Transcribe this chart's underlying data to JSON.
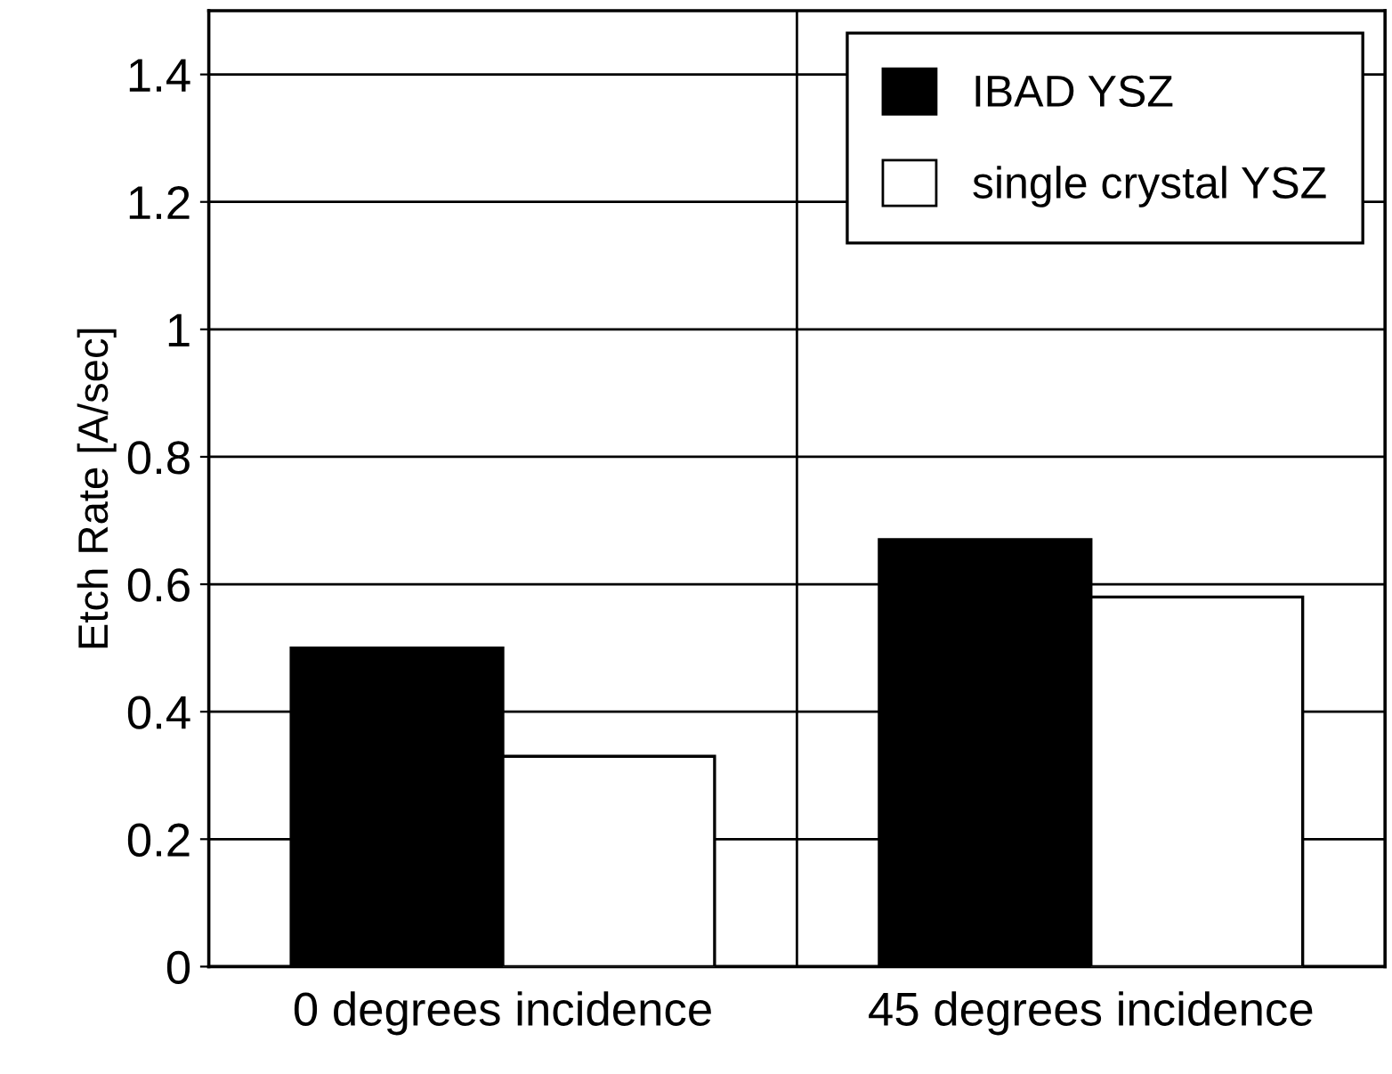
{
  "chart_data": {
    "type": "bar",
    "ylabel": "Etch Rate [A/sec]",
    "categories": [
      "0 degrees incidence",
      "45 degrees incidence"
    ],
    "series": [
      {
        "name": "IBAD YSZ",
        "color": "#000000",
        "values": [
          0.5,
          0.67
        ]
      },
      {
        "name": "single crystal YSZ",
        "color": "#ffffff",
        "values": [
          0.33,
          0.58
        ]
      }
    ],
    "ylim": [
      0,
      1.5
    ],
    "yticks": [
      0,
      0.2,
      0.4,
      0.6,
      0.8,
      1,
      1.2,
      1.4
    ],
    "grid": true,
    "legend": "top right"
  }
}
